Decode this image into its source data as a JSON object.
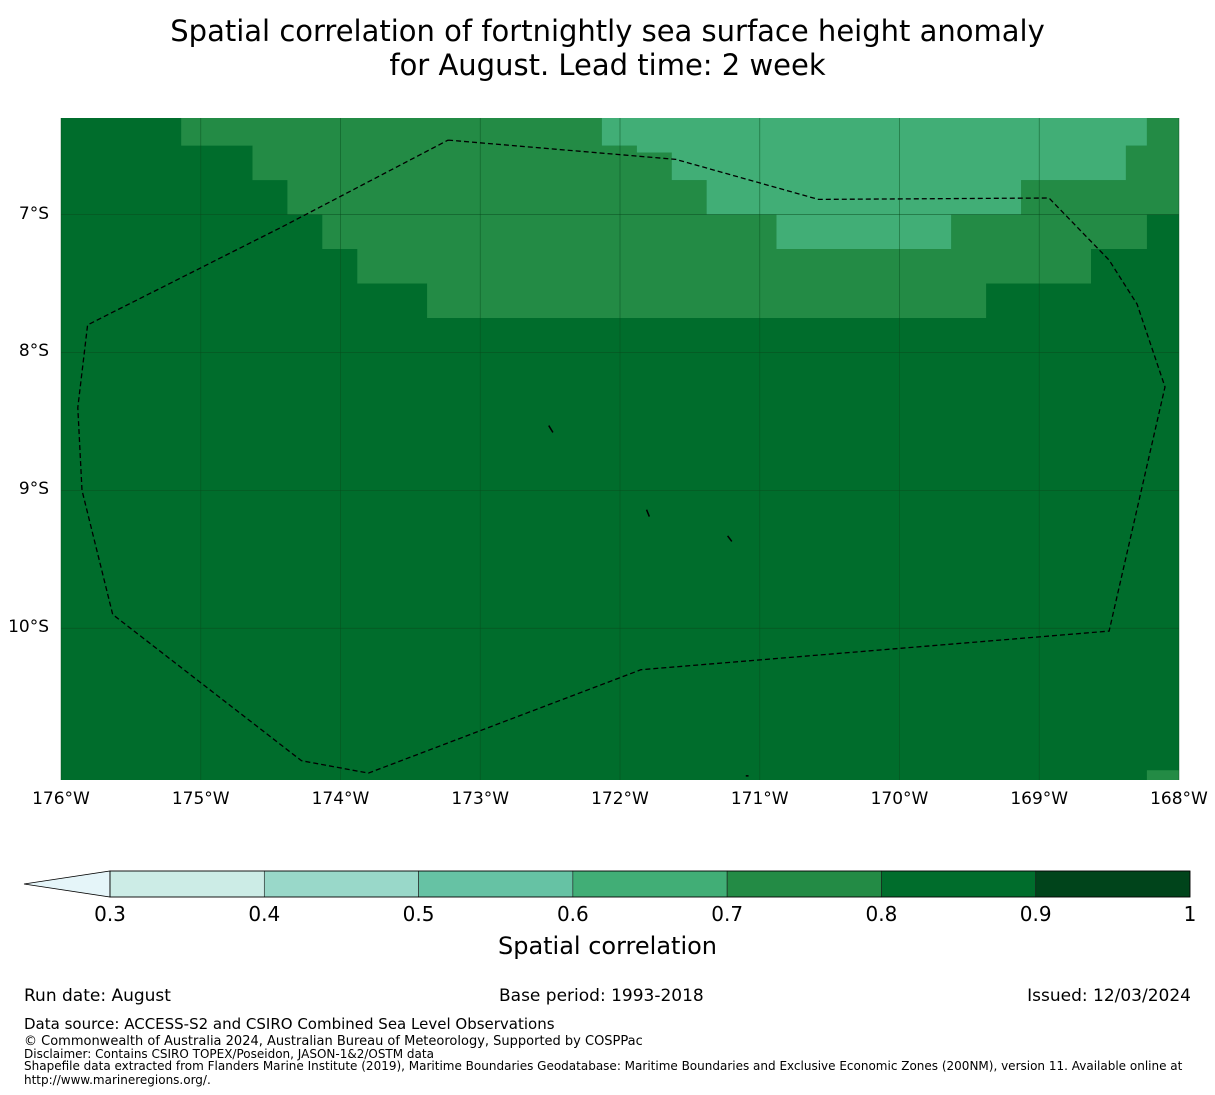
{
  "title_line1": "Spatial correlation of fortnightly sea surface height anomaly",
  "title_line2": "for August. Lead time: 2 week",
  "map": {
    "lon_range": [
      -176,
      -168
    ],
    "lat_range": [
      -11.1,
      -6.3
    ],
    "x_ticks": [
      {
        "lon": -176,
        "label": "176°W"
      },
      {
        "lon": -175,
        "label": "175°W"
      },
      {
        "lon": -174,
        "label": "174°W"
      },
      {
        "lon": -173,
        "label": "173°W"
      },
      {
        "lon": -172,
        "label": "172°W"
      },
      {
        "lon": -171,
        "label": "171°W"
      },
      {
        "lon": -170,
        "label": "170°W"
      },
      {
        "lon": -169,
        "label": "169°W"
      },
      {
        "lon": -168,
        "label": "168°W"
      }
    ],
    "y_ticks": [
      {
        "lat": -7,
        "label": "7°S"
      },
      {
        "lat": -8,
        "label": "8°S"
      },
      {
        "lat": -9,
        "label": "9°S"
      },
      {
        "lat": -10,
        "label": "10°S"
      }
    ],
    "colors": {
      "c0.6_0.7": "#41ae76",
      "c0.7_0.8": "#238b45",
      "c0.8_0.9": "#006d2c",
      "grid": "#0a4a1e",
      "boundary": "#000000"
    },
    "correlation_regions": [
      {
        "class": "0.7-0.8",
        "lon_lat": [
          [
            -175.14,
            -6.3
          ],
          [
            -172.13,
            -6.3
          ],
          [
            -172.13,
            -6.5
          ],
          [
            -171.88,
            -6.5
          ],
          [
            -171.88,
            -6.55
          ],
          [
            -171.63,
            -6.55
          ],
          [
            -171.63,
            -6.75
          ],
          [
            -171.38,
            -6.75
          ],
          [
            -171.38,
            -7
          ],
          [
            -170.88,
            -7
          ],
          [
            -170.88,
            -7.25
          ],
          [
            -169.63,
            -7.25
          ],
          [
            -169.63,
            -7
          ],
          [
            -169.13,
            -7
          ],
          [
            -169.13,
            -6.75
          ],
          [
            -168.38,
            -6.75
          ],
          [
            -168.38,
            -6.5
          ],
          [
            -168.23,
            -6.5
          ],
          [
            -168.23,
            -6.3
          ],
          [
            -168,
            -6.3
          ],
          [
            -168,
            -7
          ],
          [
            -168.23,
            -7
          ],
          [
            -168.23,
            -7.25
          ],
          [
            -168.63,
            -7.25
          ],
          [
            -168.63,
            -7.5
          ],
          [
            -169.38,
            -7.5
          ],
          [
            -169.38,
            -7.75
          ],
          [
            -173.38,
            -7.75
          ],
          [
            -173.38,
            -7.5
          ],
          [
            -173.88,
            -7.5
          ],
          [
            -173.88,
            -7.25
          ],
          [
            -174.13,
            -7.25
          ],
          [
            -174.13,
            -7
          ],
          [
            -174.38,
            -7
          ],
          [
            -174.38,
            -6.75
          ],
          [
            -174.63,
            -6.75
          ],
          [
            -174.63,
            -6.5
          ],
          [
            -175.14,
            -6.5
          ]
        ]
      },
      {
        "class": "0.6-0.7",
        "lon_lat": [
          [
            -172.13,
            -6.3
          ],
          [
            -168.23,
            -6.3
          ],
          [
            -168.23,
            -6.5
          ],
          [
            -168.38,
            -6.5
          ],
          [
            -168.38,
            -6.75
          ],
          [
            -169.13,
            -6.75
          ],
          [
            -169.13,
            -7
          ],
          [
            -169.63,
            -7
          ],
          [
            -169.63,
            -7.25
          ],
          [
            -170.88,
            -7.25
          ],
          [
            -170.88,
            -7
          ],
          [
            -171.38,
            -7
          ],
          [
            -171.38,
            -6.75
          ],
          [
            -171.63,
            -6.75
          ],
          [
            -171.63,
            -6.55
          ],
          [
            -171.88,
            -6.55
          ],
          [
            -171.88,
            -6.5
          ],
          [
            -172.13,
            -6.5
          ]
        ]
      },
      {
        "class": "0.7-0.8",
        "lon_lat": [
          [
            -168.23,
            -11.03
          ],
          [
            -168,
            -11.03
          ],
          [
            -168,
            -11.1
          ],
          [
            -168.23,
            -11.1
          ]
        ]
      }
    ],
    "eez_boundary": [
      [
        -173.23,
        -6.46
      ],
      [
        -171.6,
        -6.6
      ],
      [
        -170.58,
        -6.89
      ],
      [
        -168.93,
        -6.88
      ],
      [
        -168.5,
        -7.33
      ],
      [
        -168.3,
        -7.65
      ],
      [
        -168.1,
        -8.25
      ],
      [
        -168.5,
        -10.02
      ],
      [
        -171.85,
        -10.3
      ],
      [
        -173.8,
        -11.05
      ],
      [
        -174.28,
        -10.96
      ],
      [
        -175.63,
        -9.9
      ],
      [
        -175.85,
        -9
      ],
      [
        -175.88,
        -8.4
      ],
      [
        -175.81,
        -7.8
      ],
      [
        -174.4,
        -7.08
      ],
      [
        -173.23,
        -6.46
      ]
    ],
    "islands": [
      [
        [
          -172.51,
          -8.53
        ],
        [
          -172.48,
          -8.58
        ]
      ],
      [
        [
          -171.81,
          -9.14
        ],
        [
          -171.79,
          -9.19
        ]
      ],
      [
        [
          -171.23,
          -9.33
        ],
        [
          -171.2,
          -9.37
        ]
      ],
      [
        [
          -171.1,
          -11.07
        ],
        [
          -171.08,
          -11.07
        ]
      ]
    ]
  },
  "colorbar": {
    "ticks": [
      "0.3",
      "0.4",
      "0.5",
      "0.6",
      "0.7",
      "0.8",
      "0.9",
      "1"
    ],
    "extend_color": "#e5f5f9",
    "bins": [
      {
        "range": [
          0.3,
          0.4
        ],
        "color": "#ccece6"
      },
      {
        "range": [
          0.4,
          0.5
        ],
        "color": "#99d8c9"
      },
      {
        "range": [
          0.5,
          0.6
        ],
        "color": "#66c2a4"
      },
      {
        "range": [
          0.6,
          0.7
        ],
        "color": "#41ae76"
      },
      {
        "range": [
          0.7,
          0.8
        ],
        "color": "#238b45"
      },
      {
        "range": [
          0.8,
          0.9
        ],
        "color": "#006d2c"
      },
      {
        "range": [
          0.9,
          1.0
        ],
        "color": "#00441b"
      }
    ],
    "label": "Spatial correlation"
  },
  "footer": {
    "run_date": "Run date: August",
    "base_period": "Base period: 1993-2018",
    "issued": "Issued: 12/03/2024",
    "data_source": "Data source: ACCESS-S2 and CSIRO Combined Sea Level Observations",
    "copyright": "© Commonwealth of Australia 2024, Australian Bureau of Meteorology, Supported by COSPPac",
    "disclaimer": "Disclaimer: Contains CSIRO TOPEX/Poseidon, JASON-1&2/OSTM data",
    "shapefile": "Shapefile data extracted from Flanders Marine Institute (2019), Maritime Boundaries Geodatabase: Maritime Boundaries and Exclusive Economic Zones (200NM), version 11. Available online at http://www.marineregions.org/."
  }
}
